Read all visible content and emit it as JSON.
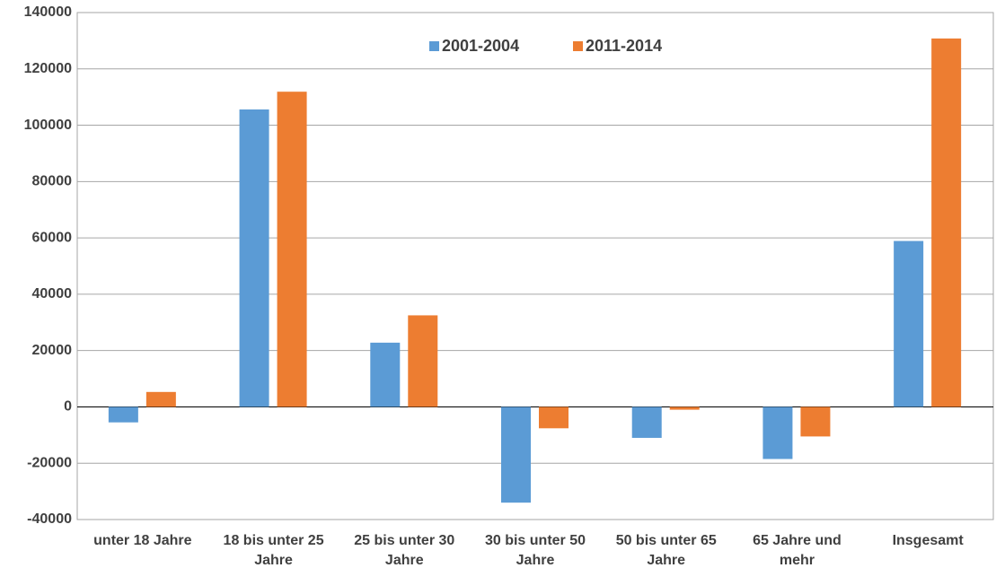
{
  "chart_data": {
    "type": "bar",
    "categories": [
      "unter 18 Jahre",
      "18 bis unter 25 Jahre",
      "25 bis unter 30 Jahre",
      "30 bis unter 50 Jahre",
      "50 bis unter 65 Jahre",
      "65 Jahre und mehr",
      "Insgesamt"
    ],
    "series": [
      {
        "name": "2001-2004",
        "color": "#5b9bd5",
        "values": [
          -5500,
          105600,
          22800,
          -34000,
          -11000,
          -18500,
          58900
        ]
      },
      {
        "name": "2011-2014",
        "color": "#ed7d31",
        "values": [
          5300,
          111900,
          32500,
          -7600,
          -1000,
          -10500,
          130800
        ]
      }
    ],
    "ylim": [
      -40000,
      140000
    ],
    "yticks": [
      -40000,
      -20000,
      0,
      20000,
      40000,
      60000,
      80000,
      100000,
      120000,
      140000
    ],
    "grid": true,
    "legend": "top"
  }
}
